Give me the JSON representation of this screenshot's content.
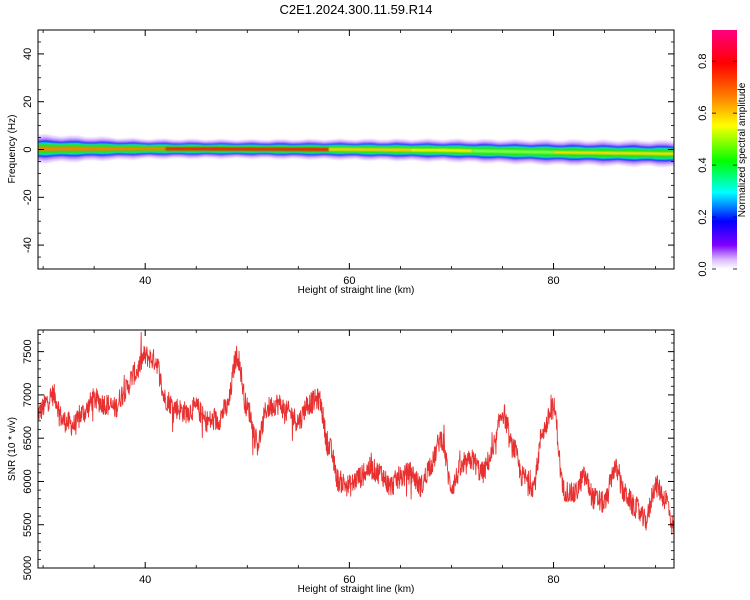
{
  "title": "C2E1.2024.300.11.59.R14",
  "chart_data": [
    {
      "type": "heatmap",
      "xlabel": "Height of straight line (km)",
      "ylabel": "Frequency (Hz)",
      "xlim": [
        29.5,
        91.8
      ],
      "ylim": [
        -50,
        50
      ],
      "xticks": [
        40,
        60,
        80
      ],
      "yticks": [
        40,
        20,
        0,
        -20,
        -40
      ],
      "description_points": [
        {
          "x": 30,
          "center": 0.3,
          "halfwidth": 4.5
        },
        {
          "x": 40,
          "center": 0.3,
          "halfwidth": 3.2
        },
        {
          "x": 50,
          "center": 0.2,
          "halfwidth": 3.0
        },
        {
          "x": 60,
          "center": 0.0,
          "halfwidth": 3.3
        },
        {
          "x": 70,
          "center": -0.4,
          "halfwidth": 3.6
        },
        {
          "x": 80,
          "center": -1.2,
          "halfwidth": 4.0
        },
        {
          "x": 91.8,
          "center": -1.8,
          "halfwidth": 4.2
        }
      ],
      "colorbar": {
        "label": "Normalized spectral amplitude",
        "range": [
          0,
          0.92
        ],
        "ticks": [
          "0.0",
          "0.2",
          "0.4",
          "0.6",
          "0.8"
        ]
      }
    },
    {
      "type": "line",
      "xlabel": "Height of straight line (km)",
      "ylabel": "SNR (10 * v/v)",
      "xlim": [
        29.5,
        91.8
      ],
      "ylim": [
        5000,
        7750
      ],
      "xticks": [
        40,
        60,
        80
      ],
      "yticks": [
        7500,
        7000,
        6500,
        6000,
        5500,
        5000
      ],
      "color": "#e83030",
      "series": [
        {
          "x": [
            29.5,
            31,
            32,
            33,
            34,
            35,
            36,
            37,
            38,
            39,
            40,
            41,
            42,
            43,
            44,
            45,
            46,
            47,
            48,
            49,
            50,
            51,
            52,
            53,
            54,
            55,
            56,
            57,
            58,
            59,
            60,
            61,
            62,
            63,
            64,
            65,
            66,
            67,
            68,
            69,
            70,
            71,
            72,
            73,
            74,
            75,
            76,
            77,
            78,
            79,
            80,
            81,
            82,
            83,
            84,
            85,
            86,
            87,
            88,
            89,
            90,
            91,
            91.8
          ],
          "y": [
            6800,
            7000,
            6700,
            6650,
            6800,
            6950,
            6900,
            6850,
            7050,
            7250,
            7450,
            7400,
            6950,
            6850,
            6800,
            6850,
            6700,
            6700,
            6850,
            7450,
            6850,
            6450,
            6850,
            6900,
            6800,
            6700,
            6900,
            6950,
            6400,
            6000,
            5950,
            6050,
            6150,
            6100,
            5950,
            6050,
            6100,
            5950,
            6200,
            6500,
            5950,
            6150,
            6250,
            6100,
            6300,
            6800,
            6400,
            6050,
            5950,
            6600,
            6850,
            5900,
            5850,
            6050,
            5800,
            5750,
            6150,
            5850,
            5700,
            5550,
            5950,
            5800,
            5450
          ]
        }
      ]
    }
  ]
}
